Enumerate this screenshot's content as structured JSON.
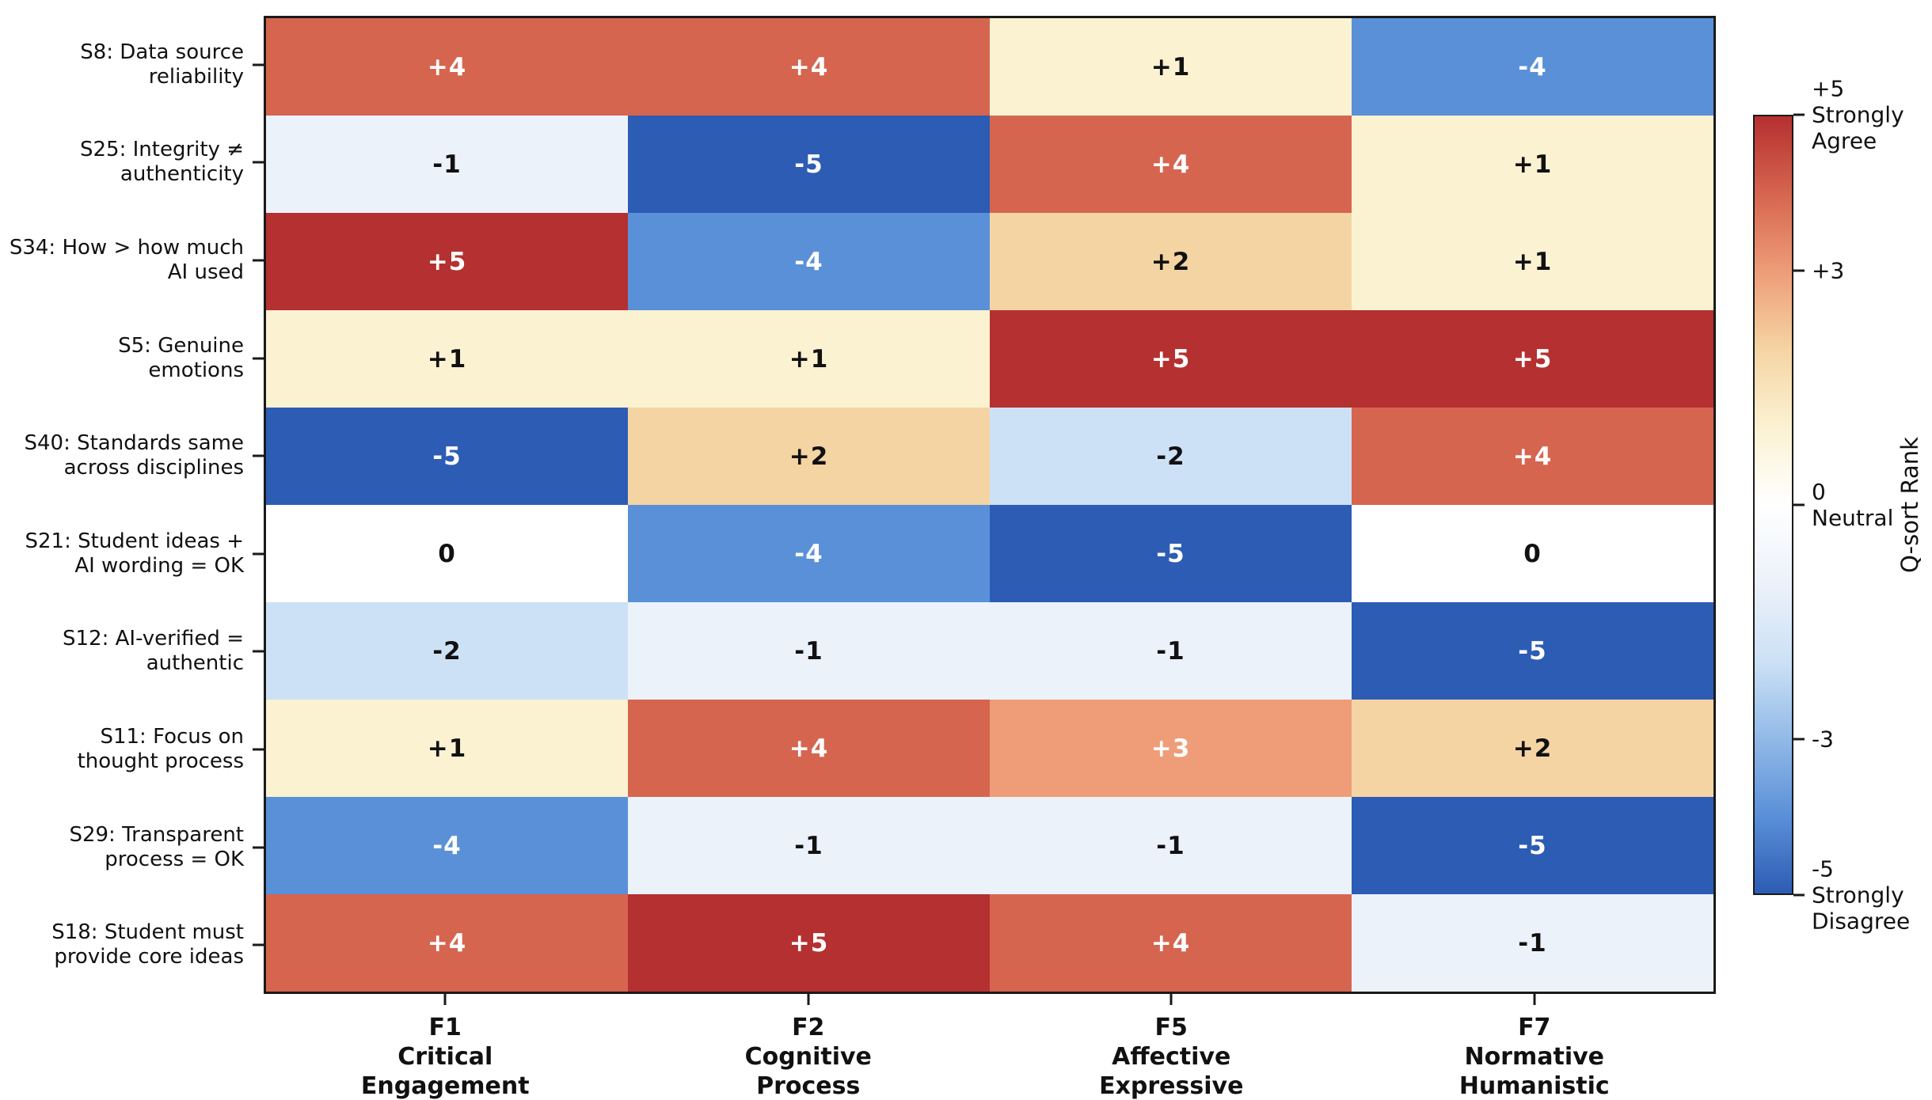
{
  "chart_data": {
    "type": "heatmap",
    "title": "",
    "x_axis_label": "",
    "y_axis_label": "",
    "columns": [
      {
        "lines": [
          "F1",
          "Critical",
          "Engagement"
        ]
      },
      {
        "lines": [
          "F2",
          "Cognitive",
          "Process"
        ]
      },
      {
        "lines": [
          "F5",
          "Affective",
          "Expressive"
        ]
      },
      {
        "lines": [
          "F7",
          "Normative",
          "Humanistic"
        ]
      }
    ],
    "rows": [
      {
        "lines": [
          "S8: Data source",
          "reliability"
        ],
        "values": [
          4,
          4,
          1,
          -4
        ],
        "labels": [
          "+4",
          "+4",
          "+1",
          "-4"
        ]
      },
      {
        "lines": [
          "S25: Integrity ≠",
          "authenticity"
        ],
        "values": [
          -1,
          -5,
          4,
          1
        ],
        "labels": [
          "-1",
          "-5",
          "+4",
          "+1"
        ]
      },
      {
        "lines": [
          "S34: How > how much",
          "AI used"
        ],
        "values": [
          5,
          -4,
          2,
          1
        ],
        "labels": [
          "+5",
          "-4",
          "+2",
          "+1"
        ]
      },
      {
        "lines": [
          "S5: Genuine",
          "emotions"
        ],
        "values": [
          1,
          1,
          5,
          5
        ],
        "labels": [
          "+1",
          "+1",
          "+5",
          "+5"
        ]
      },
      {
        "lines": [
          "S40: Standards same",
          "across disciplines"
        ],
        "values": [
          -5,
          2,
          -2,
          4
        ],
        "labels": [
          "-5",
          "+2",
          "-2",
          "+4"
        ]
      },
      {
        "lines": [
          "S21: Student ideas +",
          "AI wording = OK"
        ],
        "values": [
          0,
          -4,
          -5,
          0
        ],
        "labels": [
          "0",
          "-4",
          "-5",
          "0"
        ]
      },
      {
        "lines": [
          "S12: AI-verified =",
          "authentic"
        ],
        "values": [
          -2,
          -1,
          -1,
          -5
        ],
        "labels": [
          "-2",
          "-1",
          "-1",
          "-5"
        ]
      },
      {
        "lines": [
          "S11: Focus on",
          "thought process"
        ],
        "values": [
          1,
          4,
          3,
          2
        ],
        "labels": [
          "+1",
          "+4",
          "+3",
          "+2"
        ]
      },
      {
        "lines": [
          "S29: Transparent",
          "process = OK"
        ],
        "values": [
          -4,
          -1,
          -1,
          -5
        ],
        "labels": [
          "-4",
          "-1",
          "-1",
          "-5"
        ]
      },
      {
        "lines": [
          "S18: Student must",
          "provide core ideas"
        ],
        "values": [
          4,
          5,
          4,
          -1
        ],
        "labels": [
          "+4",
          "+5",
          "+4",
          "-1"
        ]
      }
    ],
    "colorbar": {
      "axis_label": "Q-sort Rank",
      "vmin": -5,
      "vmax": 5,
      "tick_labels": [
        {
          "value": 5,
          "lines": [
            "+5",
            "Strongly",
            "Agree"
          ]
        },
        {
          "value": 3,
          "lines": [
            "+3"
          ]
        },
        {
          "value": 0,
          "lines": [
            "0",
            "Neutral"
          ]
        },
        {
          "value": -3,
          "lines": [
            "-3"
          ]
        },
        {
          "value": -5,
          "lines": [
            "-5",
            "Strongly",
            "Disagree"
          ]
        }
      ]
    },
    "color_scale": {
      "5": "#b53030",
      "4": "#d6654f",
      "3": "#ee9d78",
      "2": "#f5d4a4",
      "1": "#fbf2d2",
      "0": "#ffffff",
      "-1": "#ecf2fa",
      "-2": "#cde1f6",
      "-3": "#92bae8",
      "-4": "#5a90d8",
      "-5": "#2d5cb4"
    },
    "text_colors": {
      "light": "#ffffff",
      "dark": "#111111"
    },
    "white_text_abs_threshold": 3,
    "axis_color": "#1a1a1a"
  }
}
